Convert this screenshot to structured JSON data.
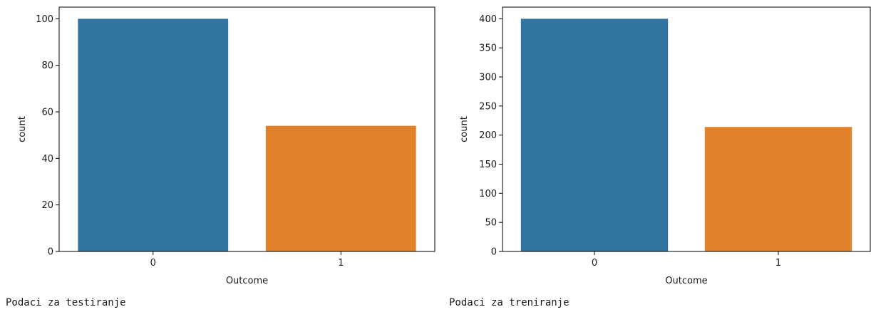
{
  "colors": {
    "class_0": "#3274a1",
    "class_1": "#e1812c",
    "axis": "#000000",
    "text": "#1a1a1a"
  },
  "captions": {
    "left": "Podaci za testiranje",
    "right": "Podaci za treniranje"
  },
  "chart_data": [
    {
      "type": "bar",
      "categories": [
        "0",
        "1"
      ],
      "values": [
        100,
        54
      ],
      "xlabel": "Outcome",
      "ylabel": "count",
      "ylim": [
        0,
        105
      ],
      "yticks": [
        0,
        20,
        40,
        60,
        80,
        100
      ],
      "grid": false
    },
    {
      "type": "bar",
      "categories": [
        "0",
        "1"
      ],
      "values": [
        400,
        214
      ],
      "xlabel": "Outcome",
      "ylabel": "count",
      "ylim": [
        0,
        420
      ],
      "yticks": [
        0,
        50,
        100,
        150,
        200,
        250,
        300,
        350,
        400
      ],
      "grid": false
    }
  ]
}
